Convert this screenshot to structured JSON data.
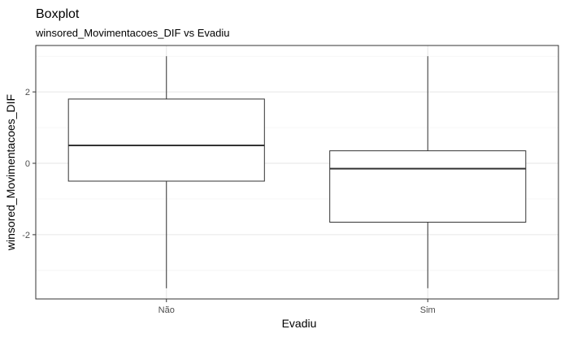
{
  "chart_data": {
    "type": "boxplot",
    "title": "Boxplot",
    "subtitle": "winsored_Movimentacoes_DIF vs Evadiu",
    "xlabel": "Evadiu",
    "ylabel": "winsored_Movimentacoes_DIF",
    "categories": [
      "Não",
      "Sim"
    ],
    "boxes": [
      {
        "category": "Não",
        "whisker_low": -3.5,
        "q1": -0.5,
        "median": 0.5,
        "q3": 1.8,
        "whisker_high": 3.0
      },
      {
        "category": "Sim",
        "whisker_low": -3.5,
        "q1": -1.65,
        "median": -0.15,
        "q3": 0.35,
        "whisker_high": 3.0
      }
    ],
    "ylim": [
      -3.8,
      3.3
    ],
    "yticks": [
      -2,
      0,
      2
    ],
    "grid": true,
    "colors": {
      "box_fill": "#ffffff",
      "box_stroke": "#333333",
      "grid": "#ebebeb",
      "panel_border": "#333333"
    }
  }
}
